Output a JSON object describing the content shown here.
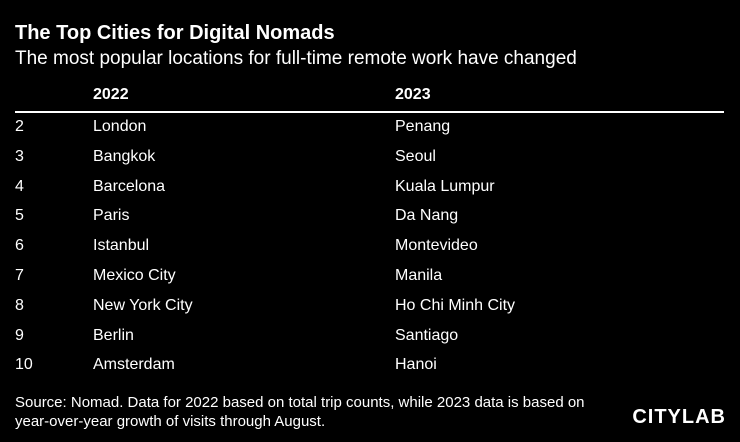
{
  "header": {
    "title": "The Top Cities for Digital Nomads",
    "subtitle": "The most popular locations for full-time remote work have changed"
  },
  "table": {
    "columns": [
      "2022",
      "2023"
    ],
    "rows": [
      [
        "2",
        "London",
        "Penang"
      ],
      [
        "3",
        "Bangkok",
        "Seoul"
      ],
      [
        "4",
        "Barcelona",
        "Kuala Lumpur"
      ],
      [
        "5",
        "Paris",
        "Da Nang"
      ],
      [
        "6",
        "Istanbul",
        "Montevideo"
      ],
      [
        "7",
        "Mexico City",
        "Manila"
      ],
      [
        "8",
        "New York City",
        "Ho Chi Minh City"
      ],
      [
        "9",
        "Berlin",
        "Santiago"
      ],
      [
        "10",
        "Amsterdam",
        "Hanoi"
      ]
    ]
  },
  "footer": {
    "source": "Source: Nomad. Data for 2022 based on total trip counts, while 2023 data is based on year-over-year growth of visits through August.",
    "logo": "CITYLAB"
  }
}
